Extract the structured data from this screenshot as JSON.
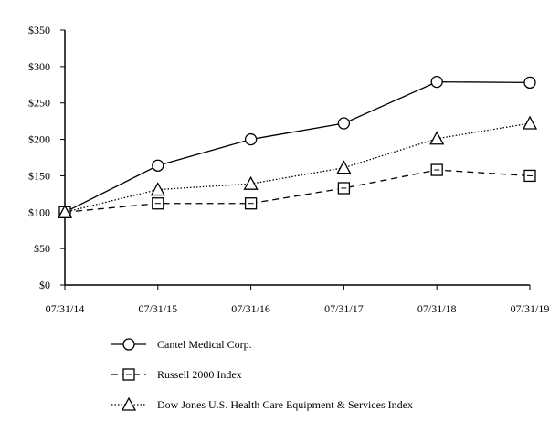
{
  "chart_data": {
    "type": "line",
    "title": "",
    "xlabel": "",
    "ylabel": "",
    "categories": [
      "07/31/14",
      "07/31/15",
      "07/31/16",
      "07/31/17",
      "07/31/18",
      "07/31/19"
    ],
    "ylim": [
      0,
      350
    ],
    "yticks": [
      "$0",
      "$50",
      "$100",
      "$150",
      "$200",
      "$250",
      "$300",
      "$350"
    ],
    "ytick_values": [
      0,
      50,
      100,
      150,
      200,
      250,
      300,
      350
    ],
    "grid": false,
    "legend_placement": "bottom",
    "series": [
      {
        "name": "Cantel Medical Corp.",
        "values": [
          100,
          164,
          200,
          222,
          279,
          278
        ],
        "marker": "circle",
        "line": "solid",
        "color": "#000000"
      },
      {
        "name": "Russell 2000 Index",
        "values": [
          100,
          112,
          112,
          133,
          158,
          150
        ],
        "marker": "square",
        "line": "dashed",
        "color": "#000000"
      },
      {
        "name": "Dow Jones U.S. Health Care Equipment & Services Index",
        "values": [
          100,
          131,
          139,
          161,
          201,
          222
        ],
        "marker": "triangle",
        "line": "dotted",
        "color": "#000000"
      }
    ]
  }
}
